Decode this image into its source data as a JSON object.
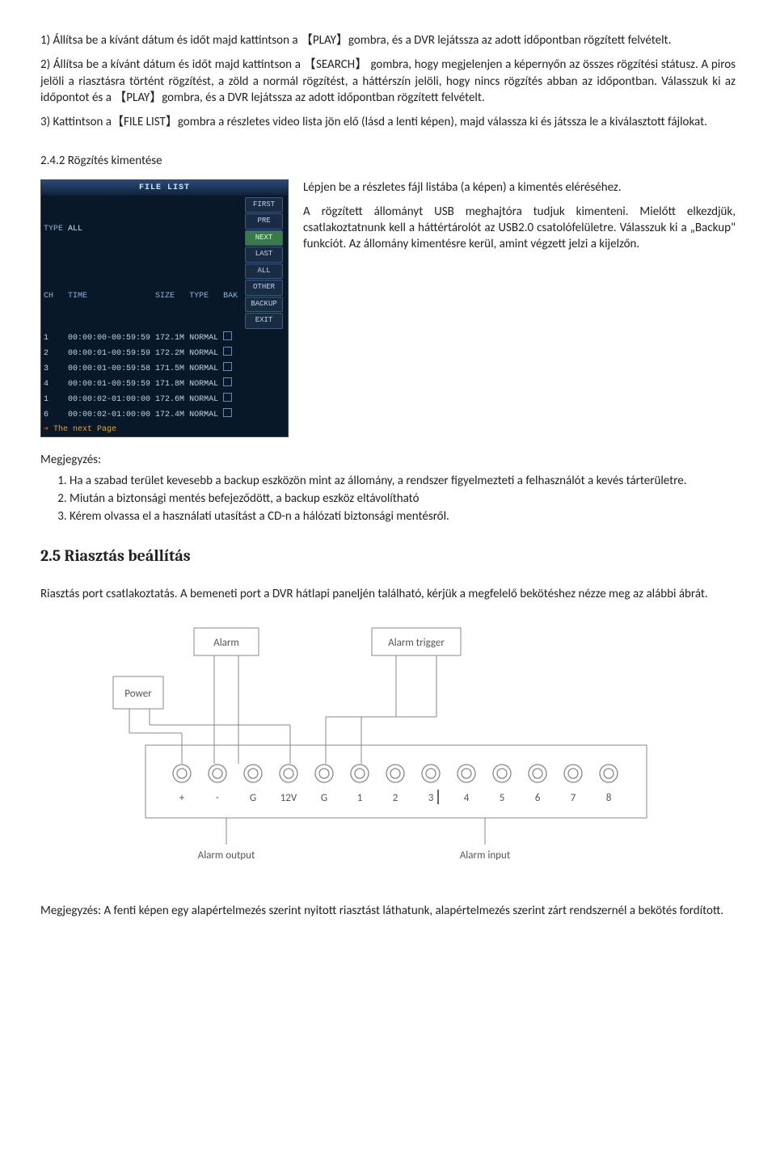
{
  "para1": "1) Állítsa be a kívánt dátum és időt majd kattintson a 【PLAY】gombra, és a DVR lejátssza az adott időpontban rögzített felvételt.",
  "para2": "2) Állítsa be a kívánt dátum és időt majd kattintson a 【SEARCH】 gombra, hogy megjelenjen a képernyőn az összes rögzítési státusz. A piros jelöli a riasztásra történt rögzítést, a zöld a normál rögzítést, a háttérszín jelöli, hogy nincs rögzítés abban az időpontban. Válasszuk ki az időpontot és a 【PLAY】gombra, és a DVR lejátssza az adott időpontban rögzített felvételt.",
  "para3": "3) Kattintson a【FILE LIST】gombra a részletes video lista jön elő (lásd a lenti képen), majd válassza ki és játssza le a kiválasztott fájlokat.",
  "section242": "2.4.2 Rögzítés kimentése",
  "fileList": {
    "title": "FILE LIST",
    "headerRow1": {
      "type": "TYPE",
      "all": "ALL"
    },
    "columns": [
      "CH",
      "TIME",
      "SIZE",
      "TYPE",
      "BAK"
    ],
    "rows": [
      {
        "ch": "1",
        "time": "00:00:00-00:59:59",
        "size": "172.1M",
        "type": "NORMAL"
      },
      {
        "ch": "2",
        "time": "00:00:01-00:59:59",
        "size": "172.2M",
        "type": "NORMAL"
      },
      {
        "ch": "3",
        "time": "00:00:01-00:59:58",
        "size": "171.5M",
        "type": "NORMAL"
      },
      {
        "ch": "4",
        "time": "00:00:01-00:59:59",
        "size": "171.8M",
        "type": "NORMAL"
      },
      {
        "ch": "1",
        "time": "00:00:02-01:00:00",
        "size": "172.6M",
        "type": "NORMAL"
      },
      {
        "ch": "6",
        "time": "00:00:02-01:00:00",
        "size": "172.4M",
        "type": "NORMAL"
      }
    ],
    "sideButtons": [
      "FIRST",
      "PRE",
      "NEXT",
      "LAST",
      "ALL",
      "OTHER",
      "BACKUP",
      "EXIT"
    ],
    "sideHighlight": 2,
    "nextPage": "The next Page"
  },
  "fileDesc1": "Lépjen be a részletes fájl listába (a képen) a kimentés eléréséhez.",
  "fileDesc2": "A rögzített állományt USB meghajtóra tudjuk kimenteni. Mielőtt elkezdjük, csatlakoztatnunk kell a háttértárolót az USB2.0 csatolófelületre. Válasszuk ki a „Backup\" funkciót. Az állomány kimentésre kerül, amint végzett jelzi a kijelzőn.",
  "notesLabel": "Megjegyzés:",
  "notes": [
    "Ha a szabad terület kevesebb a backup eszközön mint az állomány, a rendszer figyelmezteti a felhasználót a kevés tárterületre.",
    "Miután a biztonsági mentés befejeződött, a backup eszköz eltávolítható",
    "Kérem olvassa el a használati utasítást a CD-n a hálózati biztonsági mentésről."
  ],
  "section25": "2.5 Riasztás beállítás",
  "alarmPortPara": "Riasztás port csatlakoztatás.  A bemeneti port a DVR hátlapi paneljén található, kérjük a megfelelő bekötéshez nézze meg az alábbi ábrát.",
  "diagram": {
    "labels": {
      "power": "Power",
      "alarm": "Alarm",
      "alarmTrigger": "Alarm trigger",
      "alarmOutput": "Alarm output",
      "alarmInput": "Alarm input"
    },
    "ports": [
      "+",
      "-",
      "G",
      "12V",
      "G",
      "1",
      "2",
      "3",
      "4",
      "5",
      "6",
      "7",
      "8"
    ]
  },
  "footnote": "Megjegyzés: A fenti képen egy alapértelmezés szerint nyitott riasztást láthatunk, alapértelmezés szerint zárt rendszernél a bekötés fordított."
}
